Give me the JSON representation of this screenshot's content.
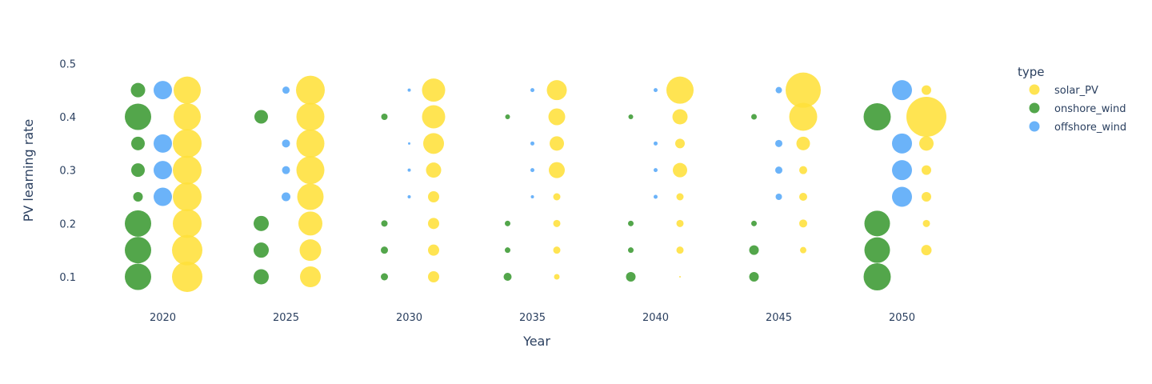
{
  "chart_data": {
    "type": "scatter",
    "title": "",
    "xlabel": "Year",
    "ylabel": "PV learning rate",
    "x_ticks": [
      "2020",
      "2025",
      "2030",
      "2035",
      "2040",
      "2045",
      "2050"
    ],
    "y_ticks": [
      "0.1",
      "0.2",
      "0.3",
      "0.4",
      "0.5"
    ],
    "ylim": [
      0.06,
      0.5
    ],
    "grid": false,
    "legend": {
      "title": "type",
      "position": "top-right"
    },
    "marker_size_encodes": "share",
    "series": [
      {
        "name": "solar_PV",
        "color": "#FFE03A",
        "points": [
          {
            "x": 2020,
            "y": 0.1,
            "size": 38
          },
          {
            "x": 2020,
            "y": 0.15,
            "size": 38
          },
          {
            "x": 2020,
            "y": 0.2,
            "size": 36
          },
          {
            "x": 2020,
            "y": 0.25,
            "size": 36
          },
          {
            "x": 2020,
            "y": 0.3,
            "size": 36
          },
          {
            "x": 2020,
            "y": 0.35,
            "size": 36
          },
          {
            "x": 2020,
            "y": 0.4,
            "size": 34
          },
          {
            "x": 2020,
            "y": 0.45,
            "size": 34
          },
          {
            "x": 2025,
            "y": 0.1,
            "size": 26
          },
          {
            "x": 2025,
            "y": 0.15,
            "size": 27
          },
          {
            "x": 2025,
            "y": 0.2,
            "size": 30
          },
          {
            "x": 2025,
            "y": 0.25,
            "size": 33
          },
          {
            "x": 2025,
            "y": 0.3,
            "size": 35
          },
          {
            "x": 2025,
            "y": 0.35,
            "size": 35
          },
          {
            "x": 2025,
            "y": 0.4,
            "size": 35
          },
          {
            "x": 2025,
            "y": 0.45,
            "size": 36
          },
          {
            "x": 2030,
            "y": 0.1,
            "size": 14
          },
          {
            "x": 2030,
            "y": 0.15,
            "size": 14
          },
          {
            "x": 2030,
            "y": 0.2,
            "size": 14
          },
          {
            "x": 2030,
            "y": 0.25,
            "size": 14
          },
          {
            "x": 2030,
            "y": 0.3,
            "size": 19
          },
          {
            "x": 2030,
            "y": 0.35,
            "size": 26
          },
          {
            "x": 2030,
            "y": 0.4,
            "size": 29
          },
          {
            "x": 2030,
            "y": 0.45,
            "size": 29
          },
          {
            "x": 2035,
            "y": 0.1,
            "size": 7
          },
          {
            "x": 2035,
            "y": 0.15,
            "size": 9
          },
          {
            "x": 2035,
            "y": 0.2,
            "size": 9
          },
          {
            "x": 2035,
            "y": 0.25,
            "size": 9
          },
          {
            "x": 2035,
            "y": 0.3,
            "size": 20
          },
          {
            "x": 2035,
            "y": 0.35,
            "size": 18
          },
          {
            "x": 2035,
            "y": 0.4,
            "size": 21
          },
          {
            "x": 2035,
            "y": 0.45,
            "size": 25
          },
          {
            "x": 2040,
            "y": 0.1,
            "size": 2
          },
          {
            "x": 2040,
            "y": 0.15,
            "size": 9
          },
          {
            "x": 2040,
            "y": 0.2,
            "size": 9
          },
          {
            "x": 2040,
            "y": 0.25,
            "size": 9
          },
          {
            "x": 2040,
            "y": 0.3,
            "size": 18
          },
          {
            "x": 2040,
            "y": 0.35,
            "size": 12
          },
          {
            "x": 2040,
            "y": 0.4,
            "size": 19
          },
          {
            "x": 2040,
            "y": 0.45,
            "size": 34
          },
          {
            "x": 2045,
            "y": 0.15,
            "size": 8
          },
          {
            "x": 2045,
            "y": 0.2,
            "size": 10
          },
          {
            "x": 2045,
            "y": 0.25,
            "size": 10
          },
          {
            "x": 2045,
            "y": 0.3,
            "size": 10
          },
          {
            "x": 2045,
            "y": 0.35,
            "size": 17
          },
          {
            "x": 2045,
            "y": 0.4,
            "size": 35
          },
          {
            "x": 2045,
            "y": 0.45,
            "size": 44
          },
          {
            "x": 2050,
            "y": 0.15,
            "size": 13
          },
          {
            "x": 2050,
            "y": 0.2,
            "size": 9
          },
          {
            "x": 2050,
            "y": 0.25,
            "size": 12
          },
          {
            "x": 2050,
            "y": 0.3,
            "size": 12
          },
          {
            "x": 2050,
            "y": 0.35,
            "size": 18
          },
          {
            "x": 2050,
            "y": 0.4,
            "size": 50
          },
          {
            "x": 2050,
            "y": 0.45,
            "size": 12
          }
        ]
      },
      {
        "name": "onshore_wind",
        "color": "#3B9A32",
        "points": [
          {
            "x": 2020,
            "y": 0.1,
            "size": 33
          },
          {
            "x": 2020,
            "y": 0.15,
            "size": 33
          },
          {
            "x": 2020,
            "y": 0.2,
            "size": 33
          },
          {
            "x": 2020,
            "y": 0.25,
            "size": 12
          },
          {
            "x": 2020,
            "y": 0.3,
            "size": 17
          },
          {
            "x": 2020,
            "y": 0.35,
            "size": 17
          },
          {
            "x": 2020,
            "y": 0.4,
            "size": 33
          },
          {
            "x": 2020,
            "y": 0.45,
            "size": 18
          },
          {
            "x": 2025,
            "y": 0.1,
            "size": 19
          },
          {
            "x": 2025,
            "y": 0.15,
            "size": 19
          },
          {
            "x": 2025,
            "y": 0.2,
            "size": 19
          },
          {
            "x": 2025,
            "y": 0.4,
            "size": 17
          },
          {
            "x": 2030,
            "y": 0.1,
            "size": 9
          },
          {
            "x": 2030,
            "y": 0.15,
            "size": 9
          },
          {
            "x": 2030,
            "y": 0.2,
            "size": 8
          },
          {
            "x": 2030,
            "y": 0.4,
            "size": 8
          },
          {
            "x": 2035,
            "y": 0.1,
            "size": 10
          },
          {
            "x": 2035,
            "y": 0.15,
            "size": 7
          },
          {
            "x": 2035,
            "y": 0.2,
            "size": 7
          },
          {
            "x": 2035,
            "y": 0.4,
            "size": 6
          },
          {
            "x": 2040,
            "y": 0.1,
            "size": 12
          },
          {
            "x": 2040,
            "y": 0.15,
            "size": 7
          },
          {
            "x": 2040,
            "y": 0.2,
            "size": 7
          },
          {
            "x": 2040,
            "y": 0.4,
            "size": 6
          },
          {
            "x": 2045,
            "y": 0.1,
            "size": 12
          },
          {
            "x": 2045,
            "y": 0.15,
            "size": 12
          },
          {
            "x": 2045,
            "y": 0.2,
            "size": 7
          },
          {
            "x": 2045,
            "y": 0.4,
            "size": 7
          },
          {
            "x": 2050,
            "y": 0.1,
            "size": 34
          },
          {
            "x": 2050,
            "y": 0.15,
            "size": 32
          },
          {
            "x": 2050,
            "y": 0.2,
            "size": 32
          },
          {
            "x": 2050,
            "y": 0.4,
            "size": 34
          }
        ]
      },
      {
        "name": "offshore_wind",
        "color": "#57A8F8",
        "points": [
          {
            "x": 2020,
            "y": 0.25,
            "size": 23
          },
          {
            "x": 2020,
            "y": 0.3,
            "size": 23
          },
          {
            "x": 2020,
            "y": 0.35,
            "size": 23
          },
          {
            "x": 2020,
            "y": 0.45,
            "size": 23
          },
          {
            "x": 2025,
            "y": 0.25,
            "size": 11
          },
          {
            "x": 2025,
            "y": 0.3,
            "size": 10
          },
          {
            "x": 2025,
            "y": 0.35,
            "size": 10
          },
          {
            "x": 2025,
            "y": 0.45,
            "size": 9
          },
          {
            "x": 2030,
            "y": 0.25,
            "size": 4
          },
          {
            "x": 2030,
            "y": 0.3,
            "size": 4
          },
          {
            "x": 2030,
            "y": 0.35,
            "size": 3
          },
          {
            "x": 2030,
            "y": 0.45,
            "size": 4
          },
          {
            "x": 2035,
            "y": 0.25,
            "size": 4
          },
          {
            "x": 2035,
            "y": 0.3,
            "size": 5
          },
          {
            "x": 2035,
            "y": 0.35,
            "size": 5
          },
          {
            "x": 2035,
            "y": 0.45,
            "size": 5
          },
          {
            "x": 2040,
            "y": 0.25,
            "size": 5
          },
          {
            "x": 2040,
            "y": 0.3,
            "size": 5
          },
          {
            "x": 2040,
            "y": 0.35,
            "size": 5
          },
          {
            "x": 2040,
            "y": 0.45,
            "size": 5
          },
          {
            "x": 2045,
            "y": 0.25,
            "size": 8
          },
          {
            "x": 2045,
            "y": 0.3,
            "size": 9
          },
          {
            "x": 2045,
            "y": 0.35,
            "size": 9
          },
          {
            "x": 2045,
            "y": 0.45,
            "size": 8
          },
          {
            "x": 2050,
            "y": 0.25,
            "size": 25
          },
          {
            "x": 2050,
            "y": 0.3,
            "size": 25
          },
          {
            "x": 2050,
            "y": 0.35,
            "size": 25
          },
          {
            "x": 2050,
            "y": 0.45,
            "size": 25
          }
        ]
      }
    ]
  }
}
